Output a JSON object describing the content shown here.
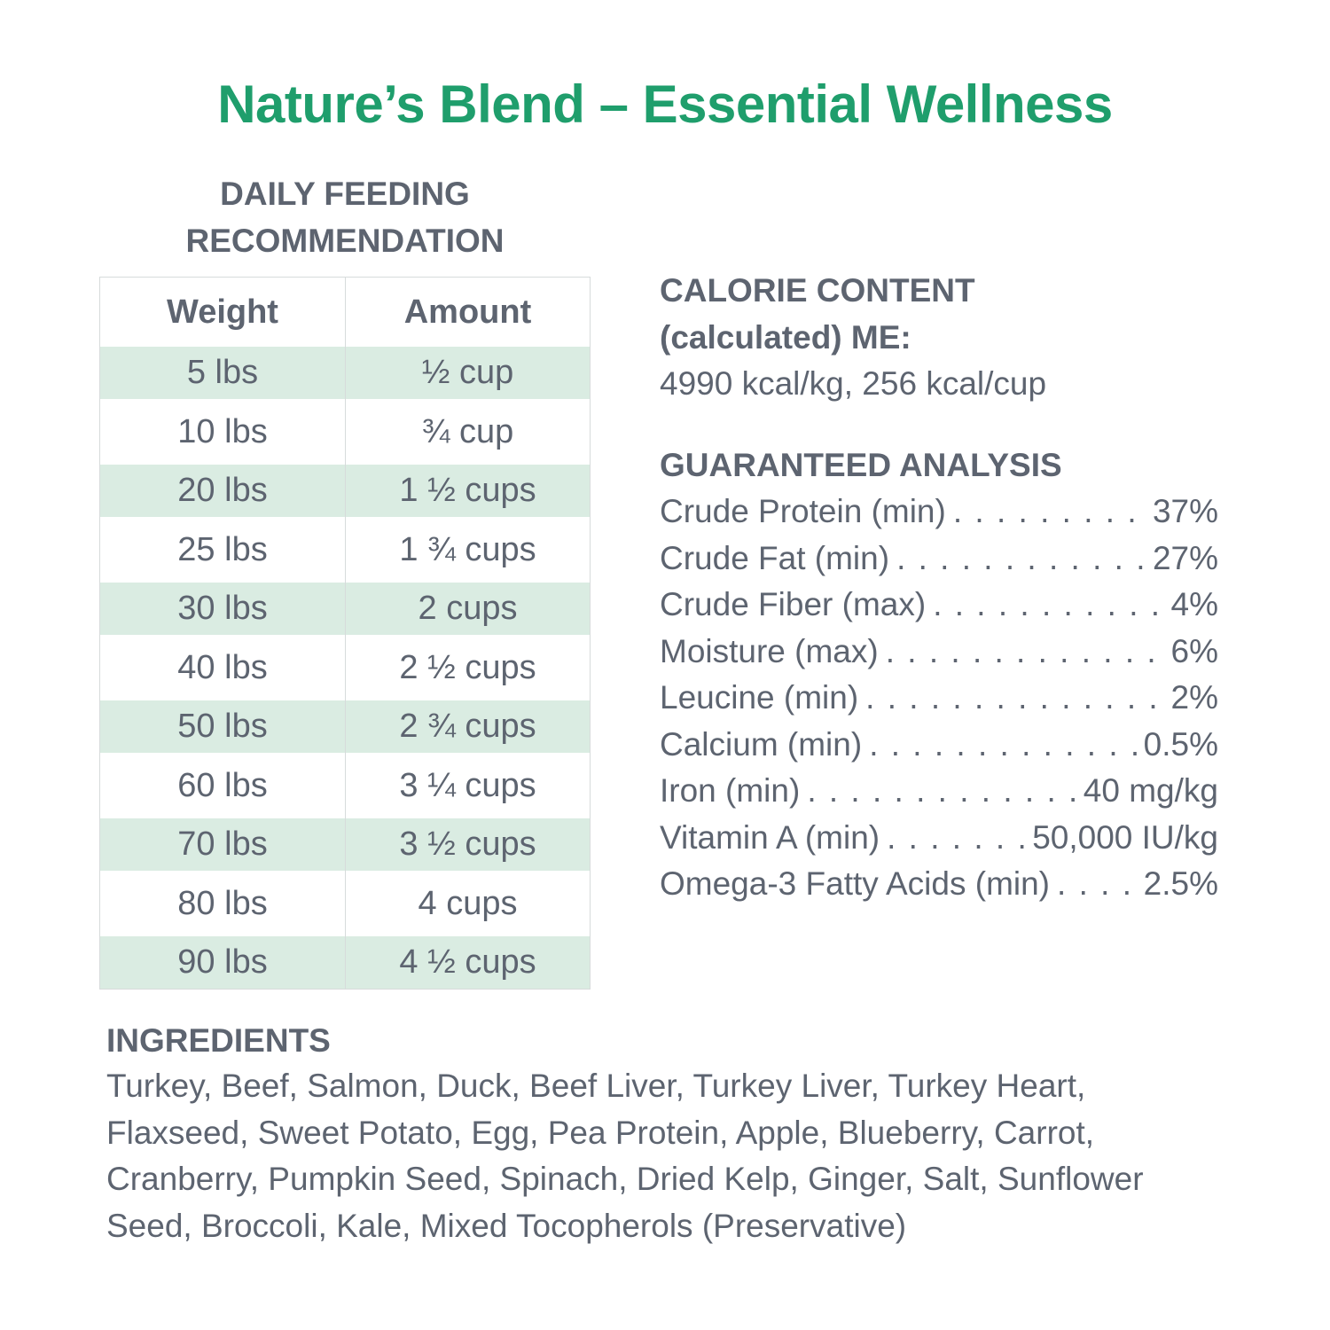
{
  "title": "Nature’s Blend – Essential Wellness",
  "feeding": {
    "heading_line1": "DAILY FEEDING",
    "heading_line2": "RECOMMENDATION",
    "col_weight": "Weight",
    "col_amount": "Amount",
    "rows": [
      {
        "weight": "5 lbs",
        "amount": "½ cup"
      },
      {
        "weight": "10 lbs",
        "amount": "¾ cup"
      },
      {
        "weight": "20 lbs",
        "amount": "1 ½ cups"
      },
      {
        "weight": "25 lbs",
        "amount": "1 ¾ cups"
      },
      {
        "weight": "30 lbs",
        "amount": "2 cups"
      },
      {
        "weight": "40 lbs",
        "amount": "2 ½ cups"
      },
      {
        "weight": "50 lbs",
        "amount": "2 ¾ cups"
      },
      {
        "weight": "60 lbs",
        "amount": "3 ¼ cups"
      },
      {
        "weight": "70 lbs",
        "amount": "3 ½ cups"
      },
      {
        "weight": "80 lbs",
        "amount": "4 cups"
      },
      {
        "weight": "90 lbs",
        "amount": "4 ½ cups"
      }
    ]
  },
  "calorie": {
    "heading_line1": "CALORIE CONTENT",
    "heading_line2": "(calculated) ME:",
    "value": "4990 kcal/kg, 256 kcal/cup"
  },
  "analysis": {
    "heading": "GUARANTEED ANALYSIS",
    "items": [
      {
        "name": "Crude Protein (min)",
        "value": "37%"
      },
      {
        "name": "Crude Fat (min)",
        "value": "27%"
      },
      {
        "name": "Crude Fiber (max)",
        "value": "4%"
      },
      {
        "name": "Moisture (max)",
        "value": "6%"
      },
      {
        "name": "Leucine (min)",
        "value": "2%"
      },
      {
        "name": "Calcium (min)",
        "value": "0.5%"
      },
      {
        "name": "Iron (min)",
        "value": "40 mg/kg"
      },
      {
        "name": "Vitamin A (min)",
        "value": "50,000 IU/kg"
      },
      {
        "name": "Omega-3 Fatty Acids (min)",
        "value": "2.5%"
      }
    ]
  },
  "ingredients": {
    "heading": "INGREDIENTS",
    "text": "Turkey, Beef, Salmon, Duck, Beef Liver, Turkey Liver, Turkey Heart, Flaxseed, Sweet Potato, Egg, Pea Protein, Apple, Blueberry, Carrot, Cranberry, Pumpkin Seed, Spinach, Dried Kelp, Ginger, Salt, Sunflower Seed, Broccoli, Kale, Mixed Tocopherols (Preservative)"
  },
  "colors": {
    "title_green": "#1f9e6c",
    "text_gray": "#5d6470",
    "row_shade": "#daece2"
  }
}
